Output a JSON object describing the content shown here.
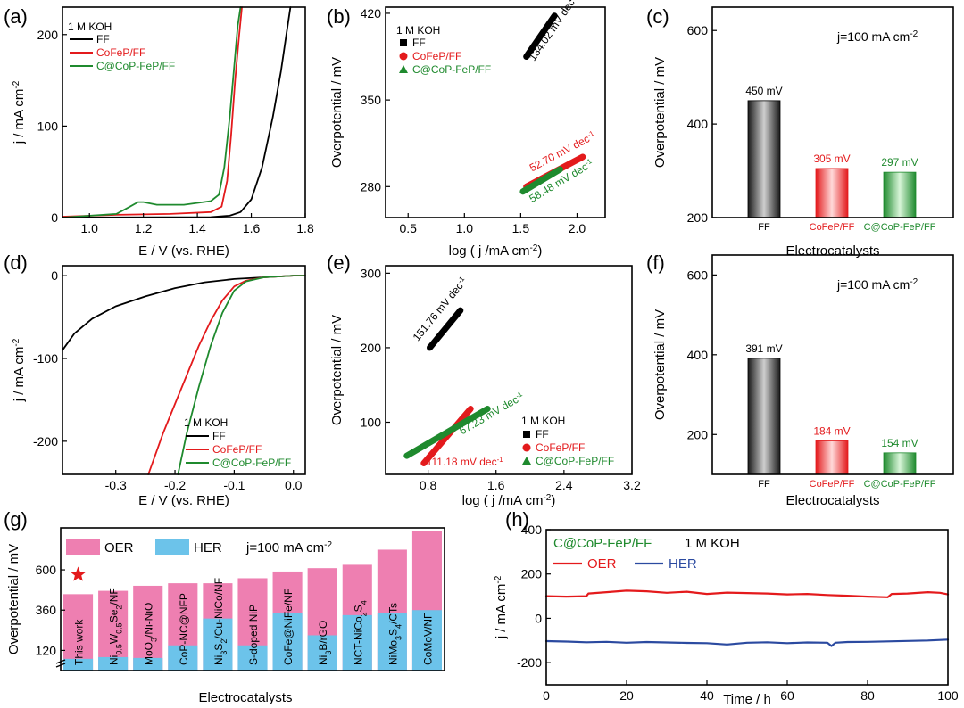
{
  "colors": {
    "ff": "#000000",
    "cofep": "#e31a1c",
    "ccop": "#1f8a2e",
    "oer": "#ee7fb1",
    "her": "#6cc3ea",
    "oer_line": "#e41a1c",
    "her_line": "#2b4aa0",
    "star": "#e31a1c"
  },
  "chart_data": [
    {
      "id": "a",
      "panel_label": "(a)",
      "type": "line",
      "xlabel_prefix": "E / V (vs. RHE)",
      "ylabel": "j / mA cm",
      "ylabel_sup": "-2",
      "xlim": [
        0.9,
        1.8
      ],
      "ylim": [
        0,
        230
      ],
      "xticks": [
        "1.0",
        "1.2",
        "1.4",
        "1.6",
        "1.8"
      ],
      "xtick_values": [
        1.0,
        1.2,
        1.4,
        1.6,
        1.8
      ],
      "yticks": [
        "0",
        "100",
        "200"
      ],
      "ytick_values": [
        0,
        100,
        200
      ],
      "legend": {
        "title": "1 M KOH",
        "entries": [
          "FF",
          "CoFeP/FF",
          "C@CoP-FeP/FF"
        ]
      },
      "series": [
        {
          "name": "FF",
          "color_key": "ff",
          "x": [
            0.9,
            1.45,
            1.52,
            1.56,
            1.6,
            1.64,
            1.68,
            1.71,
            1.73,
            1.745
          ],
          "y": [
            0,
            0.5,
            2,
            6,
            20,
            55,
            110,
            160,
            200,
            230
          ]
        },
        {
          "name": "CoFeP/FF",
          "color_key": "cofep",
          "x": [
            0.9,
            1.1,
            1.3,
            1.45,
            1.49,
            1.51,
            1.525,
            1.54,
            1.555,
            1.565
          ],
          "y": [
            1,
            3,
            4,
            6,
            12,
            40,
            90,
            150,
            200,
            230
          ]
        },
        {
          "name": "C@CoP-FeP/FF",
          "color_key": "ccop",
          "x": [
            0.9,
            1.1,
            1.15,
            1.18,
            1.2,
            1.25,
            1.35,
            1.45,
            1.48,
            1.5,
            1.52,
            1.535,
            1.55,
            1.56
          ],
          "y": [
            0,
            4,
            12,
            17,
            17,
            14,
            14,
            18,
            25,
            55,
            110,
            160,
            210,
            230
          ]
        }
      ]
    },
    {
      "id": "b",
      "panel_label": "(b)",
      "type": "line",
      "xlabel": "log ( j /mA cm",
      "xlabel_sup": "-2",
      "ylabel": "Overpotential / mV",
      "xlim": [
        0.3,
        2.25
      ],
      "ylim": [
        255,
        425
      ],
      "xticks": [
        "0.5",
        "1.0",
        "1.5",
        "2.0"
      ],
      "xtick_values": [
        0.5,
        1.0,
        1.5,
        2.0
      ],
      "yticks": [
        "280",
        "350",
        "420"
      ],
      "ytick_values": [
        280,
        350,
        420
      ],
      "legend": {
        "title": "1 M KOH",
        "entries": [
          "FF",
          "CoFeP/FF",
          "C@CoP-FeP/FF"
        ]
      },
      "series": [
        {
          "name": "FF",
          "color_key": "ff",
          "x": [
            1.55,
            1.8
          ],
          "y": [
            385,
            418
          ],
          "annotation": "134.02 mV dec",
          "ann_x": 1.62,
          "ann_y": 381
        },
        {
          "name": "CoFeP/FF",
          "color_key": "cofep",
          "x": [
            1.55,
            2.05
          ],
          "y": [
            280,
            304
          ],
          "annotation": "52.70 mV dec",
          "ann_x": 1.6,
          "ann_y": 292
        },
        {
          "name": "C@CoP-FeP/FF",
          "color_key": "ccop",
          "x": [
            1.52,
            1.85
          ],
          "y": [
            276,
            294
          ],
          "annotation": "58.48 mV dec",
          "ann_x": 1.6,
          "ann_y": 267
        }
      ]
    },
    {
      "id": "c",
      "panel_label": "(c)",
      "type": "bar",
      "xlabel": "Electrocatalysts",
      "ylabel": "Overpotential / mV",
      "ylim": [
        200,
        650
      ],
      "yticks": [
        "200",
        "400",
        "600"
      ],
      "ytick_values": [
        200,
        400,
        600
      ],
      "note": "j=100 mA cm",
      "note_sup": "-2",
      "categories": [
        "FF",
        "CoFeP/FF",
        "C@CoP-FeP/FF"
      ],
      "values": [
        450,
        305,
        297
      ],
      "value_labels": [
        "450 mV",
        "305 mV",
        "297 mV"
      ],
      "color_keys": [
        "ff",
        "cofep",
        "ccop"
      ]
    },
    {
      "id": "d",
      "panel_label": "(d)",
      "type": "line",
      "xlabel": "E / V (vs. RHE)",
      "ylabel": "j / mA cm",
      "ylabel_sup": "-2",
      "xlim": [
        -0.39,
        0.02
      ],
      "ylim": [
        -240,
        12
      ],
      "xticks": [
        "-0.3",
        "-0.2",
        "-0.1",
        "0.0"
      ],
      "xtick_values": [
        -0.3,
        -0.2,
        -0.1,
        0.0
      ],
      "yticks": [
        "0",
        "-100",
        "-200"
      ],
      "ytick_values": [
        0,
        -100,
        -200
      ],
      "legend": {
        "title": "1 M KOH",
        "entries": [
          "FF",
          "CoFeP/FF",
          "C@CoP-FeP/FF"
        ]
      },
      "series": [
        {
          "name": "FF",
          "color_key": "ff",
          "x": [
            -0.39,
            -0.37,
            -0.34,
            -0.3,
            -0.25,
            -0.2,
            -0.15,
            -0.1,
            -0.05,
            0.0,
            0.02
          ],
          "y": [
            -90,
            -70,
            -52,
            -37,
            -25,
            -15,
            -8,
            -4,
            -2,
            0,
            0
          ]
        },
        {
          "name": "CoFeP/FF",
          "color_key": "cofep",
          "x": [
            -0.245,
            -0.22,
            -0.2,
            -0.18,
            -0.16,
            -0.14,
            -0.12,
            -0.1,
            -0.08,
            -0.05,
            0.0,
            0.02
          ],
          "y": [
            -240,
            -190,
            -155,
            -120,
            -85,
            -55,
            -30,
            -13,
            -6,
            -2,
            0,
            0
          ]
        },
        {
          "name": "C@CoP-FeP/FF",
          "color_key": "ccop",
          "x": [
            -0.195,
            -0.18,
            -0.16,
            -0.14,
            -0.12,
            -0.1,
            -0.08,
            -0.05,
            0.0,
            0.02
          ],
          "y": [
            -240,
            -190,
            -135,
            -85,
            -45,
            -18,
            -7,
            -2,
            0,
            0
          ]
        }
      ]
    },
    {
      "id": "e",
      "panel_label": "(e)",
      "type": "line",
      "xlabel": "log ( j /mA cm",
      "xlabel_sup": "-2",
      "ylabel": "Overpotential / mV",
      "xlim": [
        0.3,
        3.2
      ],
      "ylim": [
        30,
        310
      ],
      "xticks": [
        "0.8",
        "1.6",
        "2.4",
        "3.2"
      ],
      "xtick_values": [
        0.8,
        1.6,
        2.4,
        3.2
      ],
      "yticks": [
        "100",
        "200",
        "300"
      ],
      "ytick_values": [
        100,
        200,
        300
      ],
      "legend": {
        "title": "1 M KOH",
        "entries": [
          "FF",
          "CoFeP/FF",
          "C@CoP-FeP/FF"
        ]
      },
      "series": [
        {
          "name": "FF",
          "color_key": "ff",
          "x": [
            0.82,
            1.18
          ],
          "y": [
            200,
            250
          ],
          "annotation": "151.76 mV dec",
          "ann_x": 0.68,
          "ann_y": 208
        },
        {
          "name": "CoFeP/FF",
          "color_key": "cofep",
          "x": [
            0.75,
            1.3
          ],
          "y": [
            45,
            118
          ],
          "annotation": "111.18 mV dec",
          "ann_x": 0.78,
          "ann_y": 42
        },
        {
          "name": "C@CoP-FeP/FF",
          "color_key": "ccop",
          "x": [
            0.55,
            1.5
          ],
          "y": [
            55,
            118
          ],
          "annotation": "67.23 mV dec",
          "ann_x": 1.2,
          "ann_y": 83
        }
      ]
    },
    {
      "id": "f",
      "panel_label": "(f)",
      "type": "bar",
      "xlabel": "Electrocatalysts",
      "ylabel": "Overpotential / mV",
      "ylim": [
        100,
        650
      ],
      "yticks": [
        "200",
        "400",
        "600"
      ],
      "ytick_values": [
        200,
        400,
        600
      ],
      "note": "j=100 mA cm",
      "note_sup": "-2",
      "categories": [
        "FF",
        "CoFeP/FF",
        "C@CoP-FeP/FF"
      ],
      "values": [
        391,
        184,
        154
      ],
      "value_labels": [
        "391 mV",
        "184 mV",
        "154 mV"
      ],
      "color_keys": [
        "ff",
        "cofep",
        "ccop"
      ]
    },
    {
      "id": "g",
      "panel_label": "(g)",
      "type": "bar",
      "xlabel": "Electrocatalysts",
      "ylabel": "Overpotential / mV",
      "ylim": [
        0,
        850
      ],
      "yticks": [
        "120",
        "360",
        "600"
      ],
      "ytick_values": [
        120,
        360,
        600
      ],
      "note": "j=100 mA cm",
      "note_sup": "-2",
      "legend": {
        "entries": [
          "OER",
          "HER"
        ]
      },
      "series": [
        {
          "name": "OER",
          "color_key": "oer",
          "values": [
            455,
            475,
            505,
            520,
            520,
            550,
            590,
            610,
            630,
            720,
            830
          ]
        },
        {
          "name": "HER",
          "color_key": "her",
          "values": [
            70,
            80,
            75,
            150,
            310,
            150,
            340,
            210,
            330,
            345,
            360
          ]
        }
      ],
      "categories": [
        [
          {
            "t": "This work"
          }
        ],
        [
          {
            "t": "Ni"
          },
          {
            "t": "0.5",
            "s": "sub"
          },
          {
            "t": "W"
          },
          {
            "t": "0.5",
            "s": "sub"
          },
          {
            "t": "Se"
          },
          {
            "t": "2",
            "s": "sub"
          },
          {
            "t": "/NF"
          }
        ],
        [
          {
            "t": "MoO"
          },
          {
            "t": "3",
            "s": "sub"
          },
          {
            "t": "/Ni-NiO"
          }
        ],
        [
          {
            "t": "CoP-NC@NFP"
          }
        ],
        [
          {
            "t": "Ni"
          },
          {
            "t": "3",
            "s": "sub"
          },
          {
            "t": "S"
          },
          {
            "t": "2",
            "s": "sub"
          },
          {
            "t": "/Cu-NiCo/NF"
          }
        ],
        [
          {
            "t": "S-doped NiP"
          }
        ],
        [
          {
            "t": "CoFe@NiFe/NF"
          }
        ],
        [
          {
            "t": "Ni"
          },
          {
            "t": "3",
            "s": "sub"
          },
          {
            "t": "B/rGO"
          }
        ],
        [
          {
            "t": "NCT-NiCo"
          },
          {
            "t": "2",
            "s": "sub"
          },
          {
            "t": "S"
          },
          {
            "t": "4",
            "s": "sub"
          }
        ],
        [
          {
            "t": "NiMo"
          },
          {
            "t": "3",
            "s": "sub"
          },
          {
            "t": "S"
          },
          {
            "t": "4",
            "s": "sub"
          },
          {
            "t": "/CTs"
          }
        ],
        [
          {
            "t": "CoMoV/NF"
          }
        ]
      ],
      "highlight_index": 0
    },
    {
      "id": "h",
      "panel_label": "(h)",
      "type": "line",
      "xlabel": "Time / h",
      "ylabel": "j / mA cm",
      "ylabel_sup": "-2",
      "title_parts": [
        "C@CoP-FeP/FF",
        "1 M KOH"
      ],
      "xlim": [
        0,
        100
      ],
      "ylim": [
        -300,
        400
      ],
      "xticks": [
        "0",
        "20",
        "40",
        "60",
        "80",
        "100"
      ],
      "xtick_values": [
        0,
        20,
        40,
        60,
        80,
        100
      ],
      "yticks": [
        "-200",
        "0",
        "200",
        "400"
      ],
      "ytick_values": [
        -200,
        0,
        200,
        400
      ],
      "legend": {
        "entries": [
          "OER",
          "HER"
        ]
      },
      "series": [
        {
          "name": "OER",
          "color_key": "oer_line",
          "x": [
            0,
            5,
            10,
            10.5,
            15,
            20,
            25,
            30,
            35,
            40,
            45,
            50,
            55,
            60,
            65,
            70,
            75,
            80,
            85,
            86,
            90,
            95,
            98,
            100
          ],
          "y": [
            100,
            98,
            100,
            112,
            118,
            125,
            122,
            115,
            120,
            110,
            116,
            114,
            112,
            108,
            110,
            105,
            102,
            98,
            95,
            110,
            112,
            118,
            115,
            108
          ]
        },
        {
          "name": "HER",
          "color_key": "her_line",
          "x": [
            0,
            5,
            10,
            15,
            20,
            25,
            30,
            35,
            40,
            45,
            50,
            55,
            60,
            65,
            70,
            71,
            72,
            75,
            80,
            85,
            90,
            95,
            100
          ],
          "y": [
            -103,
            -105,
            -108,
            -106,
            -110,
            -107,
            -109,
            -111,
            -112,
            -118,
            -110,
            -108,
            -112,
            -109,
            -110,
            -125,
            -110,
            -107,
            -106,
            -104,
            -102,
            -100,
            -96
          ]
        }
      ]
    }
  ]
}
